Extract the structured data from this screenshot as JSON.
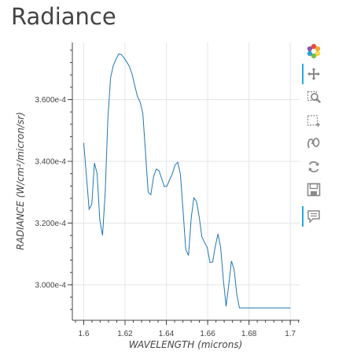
{
  "page": {
    "title": "Radiance"
  },
  "chart_data": {
    "type": "line",
    "title": "Radiance",
    "xlabel": "WAVELENGTH (microns)",
    "ylabel": "RADIANCE (W/cm²/micron/sr)",
    "xlim": [
      1.5945,
      1.7045
    ],
    "ylim": [
      0.0002885,
      0.0003785
    ],
    "xticks": [
      1.6,
      1.62,
      1.64,
      1.66,
      1.68,
      1.7
    ],
    "xtick_labels": [
      "1.6",
      "1.62",
      "1.64",
      "1.66",
      "1.68",
      "1.7"
    ],
    "yticks": [
      0.0003,
      0.00032,
      0.00034,
      0.00036
    ],
    "ytick_labels": [
      "3.000e-4",
      "3.200e-4",
      "3.400e-4",
      "3.600e-4"
    ],
    "grid": true,
    "line_color": "#1f77b4",
    "series": [
      {
        "x": [
          1.6,
          1.6026,
          1.6039,
          1.6052,
          1.6065,
          1.6078,
          1.6091,
          1.6104,
          1.6117,
          1.613,
          1.6143,
          1.6156,
          1.6169,
          1.6182,
          1.6195,
          1.6208,
          1.6221,
          1.6234,
          1.6247,
          1.626,
          1.6273,
          1.6286,
          1.6299,
          1.6312,
          1.6325,
          1.6338,
          1.6351,
          1.6364,
          1.6377,
          1.639,
          1.6403,
          1.6416,
          1.6429,
          1.6442,
          1.6455,
          1.6468,
          1.6481,
          1.6494,
          1.6507,
          1.652,
          1.6533,
          1.6546,
          1.6559,
          1.6572,
          1.6585,
          1.6598,
          1.6611,
          1.6624,
          1.6637,
          1.665,
          1.6663,
          1.6676,
          1.6689,
          1.6702,
          1.6715,
          1.6728,
          1.6741,
          1.6754,
          1.6767,
          1.678,
          1.6793,
          1.6806,
          1.6819,
          1.6832,
          1.6845,
          1.6858,
          1.6871,
          1.6884,
          1.6897,
          1.691,
          1.6923,
          1.6936,
          1.6949,
          1.6962,
          1.6975,
          1.6988,
          1.7
        ],
        "y": [
          0.000346,
          0.0003245,
          0.000326,
          0.0003395,
          0.000336,
          0.000321,
          0.000316,
          0.00033,
          0.000354,
          0.000367,
          0.000371,
          0.000373,
          0.0003748,
          0.0003746,
          0.0003735,
          0.0003722,
          0.0003708,
          0.0003683,
          0.0003646,
          0.000361,
          0.0003592,
          0.0003556,
          0.000343,
          0.00033,
          0.0003292,
          0.000335,
          0.0003375,
          0.000337,
          0.0003345,
          0.0003318,
          0.000332,
          0.000334,
          0.000336,
          0.0003388,
          0.0003397,
          0.0003358,
          0.000324,
          0.0003115,
          0.0003095,
          0.0003215,
          0.0003282,
          0.000327,
          0.000322,
          0.0003155,
          0.0003138,
          0.000312,
          0.0003072,
          0.0003074,
          0.0003125,
          0.0003165,
          0.000312,
          0.0003015,
          0.000293,
          0.0003,
          0.0003077,
          0.000305,
          0.000297,
          0.0002925,
          0.0002925,
          0.0002925,
          0.0002925,
          0.0002925,
          0.0002925,
          0.0002925,
          0.0002925,
          0.0002925,
          0.0002925,
          0.0002925,
          0.0002925,
          0.0002925,
          0.0002925,
          0.0002925,
          0.0002925,
          0.0002925,
          0.0002925,
          0.0002925,
          0.0002925
        ]
      }
    ]
  },
  "toolbar": {
    "items": [
      {
        "name": "bokeh-logo-icon"
      },
      {
        "name": "pan-icon",
        "active": true
      },
      {
        "name": "box-zoom-icon"
      },
      {
        "name": "wheel-zoom-icon"
      },
      {
        "name": "lasso-select-icon"
      },
      {
        "name": "reset-icon"
      },
      {
        "name": "save-icon"
      },
      {
        "name": "hover-icon",
        "active": true
      }
    ]
  }
}
